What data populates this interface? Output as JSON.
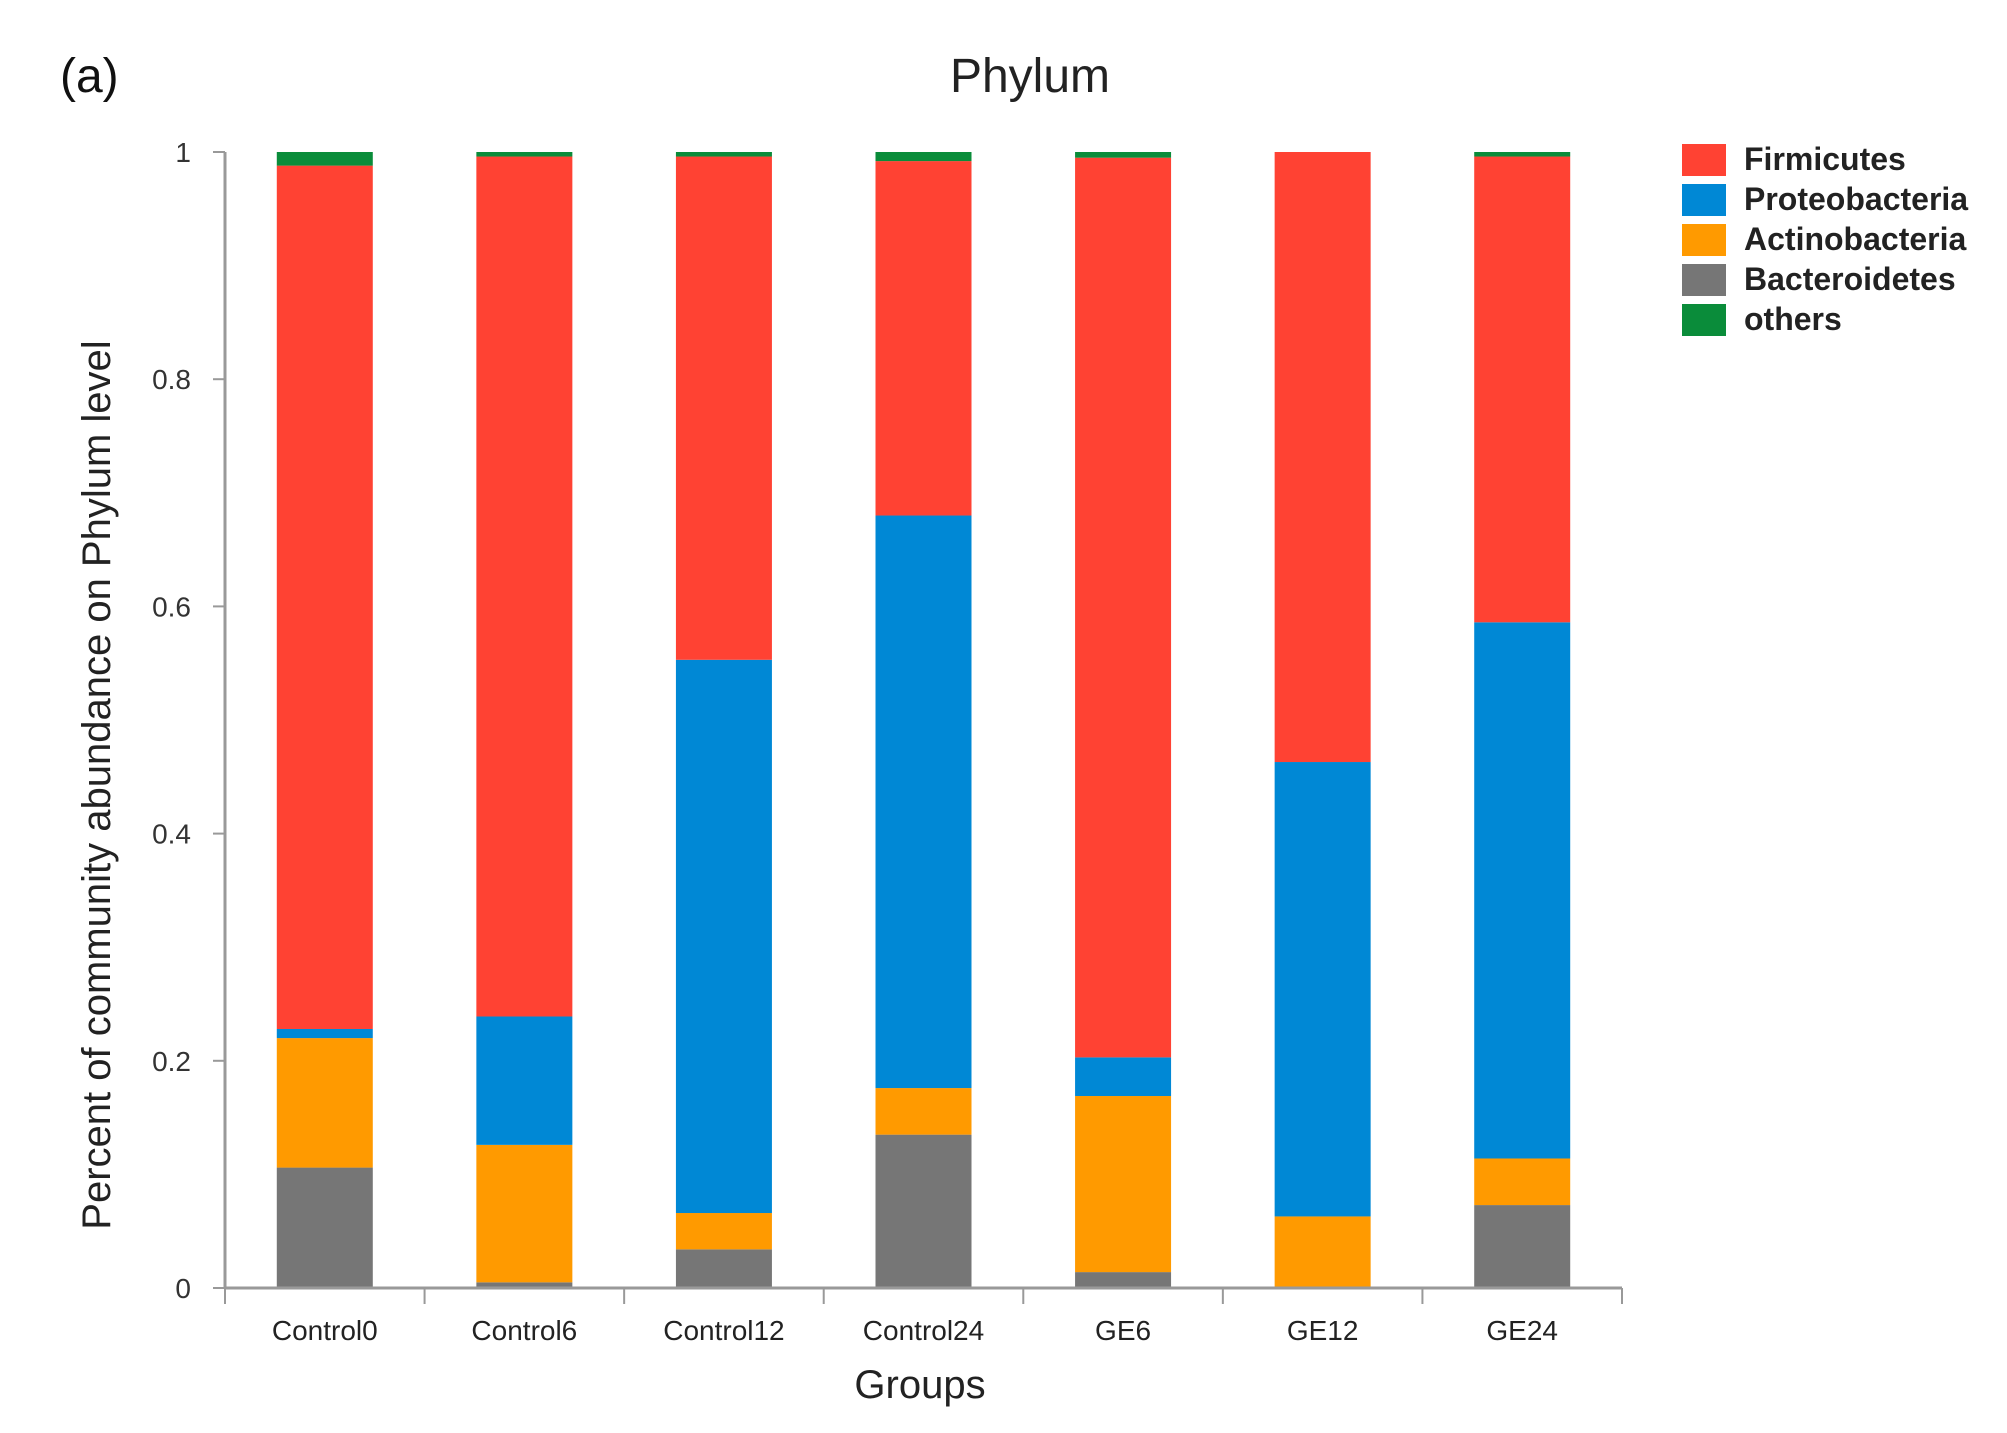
{
  "panel_label": "(a)",
  "chart_data": {
    "type": "bar",
    "stacked": true,
    "title": "Phylum",
    "xlabel": "Groups",
    "ylabel": "Percent of community abundance on Phylum level",
    "ylim": [
      0,
      1
    ],
    "yticks": [
      "0",
      "0.2",
      "0.4",
      "0.6",
      "0.8",
      "1"
    ],
    "ytick_values": [
      0,
      0.2,
      0.4,
      0.6,
      0.8,
      1
    ],
    "grid": false,
    "legend_position": "right",
    "categories": [
      "Control0",
      "Control6",
      "Control12",
      "Control24",
      "GE6",
      "GE12",
      "GE24"
    ],
    "series": [
      {
        "name": "Bacteroidetes",
        "color": "#767676",
        "values": [
          0.106,
          0.005,
          0.034,
          0.135,
          0.014,
          0.0,
          0.073
        ]
      },
      {
        "name": "Actinobacteria",
        "color": "#FF9A00",
        "values": [
          0.114,
          0.121,
          0.032,
          0.041,
          0.155,
          0.063,
          0.041
        ]
      },
      {
        "name": "Proteobacteria",
        "color": "#0088D5",
        "values": [
          0.008,
          0.113,
          0.487,
          0.504,
          0.034,
          0.4,
          0.472
        ]
      },
      {
        "name": "Firmicutes",
        "color": "#FF4233",
        "values": [
          0.76,
          0.757,
          0.443,
          0.312,
          0.792,
          0.537,
          0.41
        ]
      },
      {
        "name": "others",
        "color": "#0A8C3A",
        "values": [
          0.012,
          0.004,
          0.004,
          0.008,
          0.005,
          0.0,
          0.004
        ]
      }
    ],
    "legend_order": [
      "Firmicutes",
      "Proteobacteria",
      "Actinobacteria",
      "Bacteroidetes",
      "others"
    ]
  }
}
